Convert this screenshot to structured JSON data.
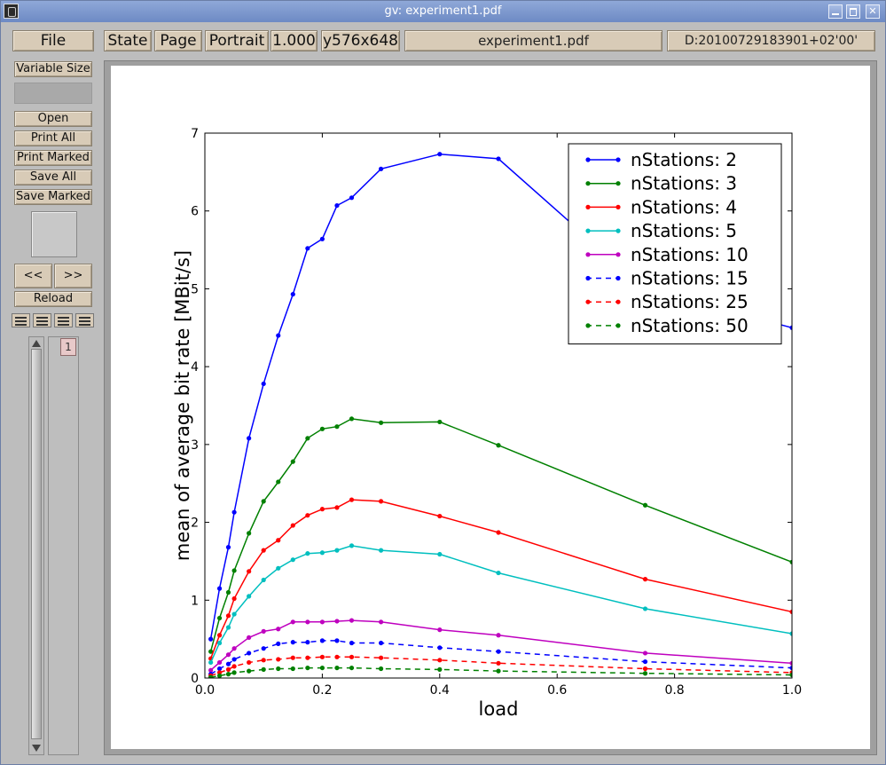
{
  "window": {
    "title": "gv: experiment1.pdf"
  },
  "toolbar": {
    "file_label": "File",
    "state_label": "State",
    "page_label": "Page",
    "orientation_label": "Portrait",
    "zoom_label": "1.000",
    "size_label": "y576x648",
    "filename": "experiment1.pdf",
    "date": "D:20100729183901+02'00'"
  },
  "sidebar": {
    "variable_size_label": "Variable Size",
    "open_label": "Open",
    "print_all_label": "Print All",
    "print_marked_label": "Print Marked",
    "save_all_label": "Save All",
    "save_marked_label": "Save Marked",
    "prev_label": "<<",
    "next_label": ">>",
    "reload_label": "Reload",
    "page_list": [
      "1"
    ]
  },
  "chart_data": {
    "type": "line",
    "title": "",
    "xlabel": "load",
    "ylabel": "mean of average bit rate [MBit/s]",
    "xlim": [
      0.0,
      1.0
    ],
    "ylim": [
      0,
      7
    ],
    "xticks": [
      "0.0",
      "0.2",
      "0.4",
      "0.6",
      "0.8",
      "1.0"
    ],
    "yticks": [
      "0",
      "1",
      "2",
      "3",
      "4",
      "5",
      "6",
      "7"
    ],
    "grid": false,
    "legend_position": "top-right",
    "x": [
      0.01,
      0.025,
      0.04,
      0.05,
      0.075,
      0.1,
      0.125,
      0.15,
      0.175,
      0.2,
      0.225,
      0.25,
      0.3,
      0.4,
      0.5,
      0.75,
      1.0
    ],
    "series": [
      {
        "name": "nStations: 2",
        "color": "#0000ff",
        "dashed": false,
        "values": [
          0.5,
          1.15,
          1.68,
          2.13,
          3.08,
          3.78,
          4.4,
          4.93,
          5.52,
          5.64,
          6.07,
          6.17,
          6.54,
          6.73,
          6.67,
          5.0,
          4.5
        ]
      },
      {
        "name": "nStations: 3",
        "color": "#008000",
        "dashed": false,
        "values": [
          0.34,
          0.77,
          1.1,
          1.38,
          1.86,
          2.27,
          2.52,
          2.78,
          3.08,
          3.2,
          3.23,
          3.33,
          3.28,
          3.29,
          2.99,
          2.22,
          1.49
        ]
      },
      {
        "name": "nStations: 4",
        "color": "#ff0000",
        "dashed": false,
        "values": [
          0.25,
          0.55,
          0.8,
          1.02,
          1.37,
          1.64,
          1.77,
          1.96,
          2.09,
          2.17,
          2.19,
          2.29,
          2.27,
          2.08,
          1.87,
          1.27,
          0.85
        ]
      },
      {
        "name": "nStations: 5",
        "color": "#00bfbf",
        "dashed": false,
        "values": [
          0.2,
          0.45,
          0.65,
          0.82,
          1.05,
          1.26,
          1.41,
          1.52,
          1.6,
          1.61,
          1.64,
          1.7,
          1.64,
          1.59,
          1.35,
          0.89,
          0.57
        ]
      },
      {
        "name": "nStations: 10",
        "color": "#bf00bf",
        "dashed": false,
        "values": [
          0.1,
          0.2,
          0.3,
          0.38,
          0.52,
          0.6,
          0.63,
          0.72,
          0.72,
          0.72,
          0.73,
          0.74,
          0.72,
          0.62,
          0.55,
          0.32,
          0.19
        ]
      },
      {
        "name": "nStations: 15",
        "color": "#0000ff",
        "dashed": true,
        "values": [
          0.05,
          0.12,
          0.18,
          0.24,
          0.32,
          0.38,
          0.44,
          0.46,
          0.46,
          0.48,
          0.48,
          0.45,
          0.45,
          0.39,
          0.34,
          0.21,
          0.13
        ]
      },
      {
        "name": "nStations: 25",
        "color": "#ff0000",
        "dashed": true,
        "values": [
          0.03,
          0.07,
          0.11,
          0.15,
          0.2,
          0.23,
          0.24,
          0.26,
          0.26,
          0.27,
          0.27,
          0.27,
          0.26,
          0.23,
          0.19,
          0.12,
          0.07
        ]
      },
      {
        "name": "nStations: 50",
        "color": "#008000",
        "dashed": true,
        "values": [
          0.01,
          0.03,
          0.05,
          0.07,
          0.09,
          0.11,
          0.12,
          0.12,
          0.13,
          0.13,
          0.13,
          0.13,
          0.12,
          0.11,
          0.09,
          0.06,
          0.04
        ]
      }
    ]
  }
}
